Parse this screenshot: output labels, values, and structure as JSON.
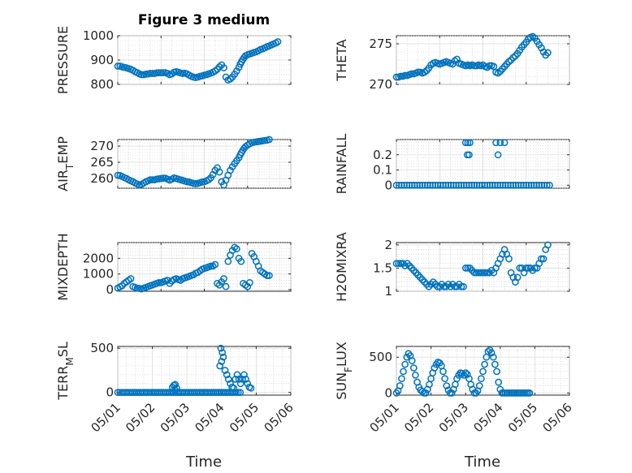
{
  "figure": {
    "title": "Figure 3 medium",
    "xlabel": "Time",
    "x_tick_labels": [
      "05/01",
      "05/02",
      "05/03",
      "05/04",
      "05/05",
      "05/06"
    ],
    "marker_color": "#0072bd"
  },
  "chart_data": [
    {
      "id": "pressure",
      "type": "scatter",
      "title": "Figure 3 medium",
      "ylabel": "PRESSURE",
      "ylim": [
        800,
        1000
      ],
      "yticks": [
        800,
        900,
        1000
      ],
      "xlim": [
        0,
        4
      ],
      "x_tick_labels_visible": false,
      "x": [
        0.0,
        0.05,
        0.1,
        0.15,
        0.2,
        0.25,
        0.3,
        0.35,
        0.4,
        0.45,
        0.5,
        0.55,
        0.6,
        0.65,
        0.7,
        0.75,
        0.8,
        0.85,
        0.9,
        0.95,
        1.0,
        1.05,
        1.1,
        1.15,
        1.2,
        1.25,
        1.3,
        1.35,
        1.4,
        1.45,
        1.5,
        1.55,
        1.6,
        1.65,
        1.7,
        1.75,
        1.8,
        1.85,
        1.9,
        1.95,
        2.0,
        2.05,
        2.1,
        2.15,
        2.2,
        2.25,
        2.3,
        2.35,
        2.4,
        2.45,
        2.5,
        2.55,
        2.6,
        2.65,
        2.7,
        2.75,
        2.8,
        2.83,
        2.86,
        2.89,
        2.92,
        2.95,
        3.0,
        3.05,
        3.1,
        3.15,
        3.2,
        3.25,
        3.3,
        3.35,
        3.4,
        3.45,
        3.5,
        3.55,
        3.6,
        3.65,
        3.7
      ],
      "y": [
        875,
        875,
        872,
        870,
        868,
        865,
        862,
        858,
        852,
        848,
        843,
        840,
        840,
        842,
        843,
        845,
        845,
        845,
        847,
        848,
        848,
        848,
        848,
        845,
        840,
        843,
        850,
        852,
        850,
        847,
        845,
        846,
        843,
        838,
        833,
        830,
        828,
        830,
        833,
        835,
        838,
        840,
        843,
        846,
        850,
        855,
        862,
        872,
        880,
        868,
        830,
        818,
        822,
        830,
        842,
        855,
        870,
        883,
        893,
        902,
        910,
        917,
        922,
        925,
        928,
        931,
        934,
        938,
        943,
        946,
        950,
        955,
        958,
        962,
        966,
        970,
        975
      ]
    },
    {
      "id": "theta",
      "type": "scatter",
      "ylabel": "THETA",
      "ylim": [
        270,
        276
      ],
      "yticks": [
        270,
        275
      ],
      "xlim": [
        0,
        4
      ],
      "x_tick_labels_visible": false,
      "x": [
        0.0,
        0.05,
        0.1,
        0.15,
        0.2,
        0.25,
        0.3,
        0.35,
        0.4,
        0.45,
        0.5,
        0.55,
        0.6,
        0.65,
        0.7,
        0.75,
        0.8,
        0.85,
        0.9,
        0.95,
        1.0,
        1.05,
        1.1,
        1.15,
        1.2,
        1.25,
        1.3,
        1.35,
        1.4,
        1.45,
        1.5,
        1.55,
        1.6,
        1.65,
        1.7,
        1.75,
        1.8,
        1.85,
        1.9,
        1.95,
        2.0,
        2.05,
        2.1,
        2.15,
        2.2,
        2.25,
        2.3,
        2.35,
        2.4,
        2.45,
        2.5,
        2.55,
        2.6,
        2.65,
        2.7,
        2.75,
        2.8,
        2.85,
        2.9,
        2.95,
        3.0,
        3.05,
        3.1,
        3.15,
        3.2,
        3.25,
        3.3,
        3.35,
        3.4,
        3.45,
        3.5
      ],
      "y": [
        270.9,
        270.9,
        271.0,
        271.0,
        271.1,
        271.1,
        271.2,
        271.3,
        271.3,
        271.4,
        271.5,
        271.5,
        271.4,
        271.5,
        271.7,
        272.0,
        272.4,
        272.6,
        272.7,
        272.6,
        272.5,
        272.6,
        272.7,
        272.8,
        272.7,
        272.6,
        272.5,
        272.9,
        273.1,
        272.6,
        272.5,
        272.4,
        272.3,
        272.4,
        272.3,
        272.4,
        272.3,
        272.3,
        272.4,
        272.3,
        272.4,
        272.2,
        272.1,
        272.3,
        272.3,
        272.2,
        271.5,
        271.4,
        271.6,
        271.9,
        272.2,
        272.5,
        272.8,
        273.0,
        273.3,
        273.5,
        273.8,
        274.2,
        274.6,
        274.9,
        275.2,
        275.6,
        275.8,
        275.9,
        275.7,
        275.3,
        274.9,
        274.5,
        274.0,
        273.6,
        273.9
      ]
    },
    {
      "id": "air_temp",
      "type": "scatter",
      "ylabel": "AIR_TEMP",
      "ylim": [
        257,
        272
      ],
      "yticks": [
        260,
        265,
        270
      ],
      "xlim": [
        0,
        4
      ],
      "x_tick_labels_visible": false,
      "x": [
        0.0,
        0.05,
        0.1,
        0.15,
        0.2,
        0.25,
        0.3,
        0.35,
        0.4,
        0.45,
        0.5,
        0.55,
        0.6,
        0.65,
        0.7,
        0.75,
        0.8,
        0.85,
        0.9,
        0.95,
        1.0,
        1.05,
        1.1,
        1.15,
        1.2,
        1.25,
        1.3,
        1.35,
        1.4,
        1.45,
        1.5,
        1.55,
        1.6,
        1.65,
        1.7,
        1.75,
        1.8,
        1.85,
        1.9,
        1.95,
        2.0,
        2.05,
        2.1,
        2.15,
        2.2,
        2.25,
        2.3,
        2.35,
        2.4,
        2.45,
        2.5,
        2.55,
        2.6,
        2.65,
        2.7,
        2.75,
        2.8,
        2.83,
        2.86,
        2.89,
        2.92,
        2.95,
        3.0,
        3.05,
        3.1,
        3.15,
        3.2,
        3.25,
        3.3,
        3.35,
        3.4,
        3.45,
        3.5
      ],
      "y": [
        261.0,
        260.9,
        260.6,
        260.3,
        260.0,
        259.6,
        259.3,
        259.0,
        258.6,
        258.3,
        258.0,
        258.2,
        258.6,
        259.0,
        259.3,
        259.6,
        259.6,
        259.6,
        259.8,
        259.9,
        260.0,
        260.1,
        260.1,
        259.8,
        259.5,
        259.8,
        260.2,
        260.0,
        259.8,
        259.6,
        259.4,
        259.2,
        259.0,
        258.9,
        258.7,
        258.5,
        258.4,
        258.5,
        258.7,
        258.9,
        259.0,
        259.3,
        259.6,
        260.2,
        261.2,
        262.5,
        263.3,
        262.0,
        259.0,
        258.0,
        259.5,
        261.0,
        262.5,
        263.6,
        264.6,
        265.5,
        266.4,
        267.3,
        268.0,
        268.7,
        269.3,
        269.8,
        270.3,
        270.7,
        271.0,
        271.2,
        271.3,
        271.4,
        271.5,
        271.6,
        271.7,
        271.8,
        272.0
      ]
    },
    {
      "id": "rainfall",
      "type": "scatter",
      "ylabel": "RAINFALL",
      "ylim": [
        -0.02,
        0.3
      ],
      "yticks": [
        0,
        0.1,
        0.2
      ],
      "xlim": [
        0,
        4
      ],
      "x_tick_labels_visible": false,
      "x": [
        0.0,
        0.06,
        0.12,
        0.18,
        0.24,
        0.3,
        0.36,
        0.42,
        0.48,
        0.54,
        0.6,
        0.66,
        0.72,
        0.78,
        0.84,
        0.9,
        0.96,
        1.02,
        1.08,
        1.14,
        1.2,
        1.26,
        1.32,
        1.38,
        1.44,
        1.5,
        1.56,
        1.62,
        1.68,
        1.74,
        1.8,
        1.86,
        1.92,
        1.98,
        2.04,
        2.1,
        2.16,
        2.22,
        2.28,
        2.34,
        2.4,
        2.46,
        2.52,
        2.58,
        2.64,
        2.7,
        2.76,
        2.82,
        2.88,
        2.94,
        3.0,
        3.06,
        3.12,
        3.18,
        3.24,
        3.3,
        3.36,
        3.42,
        3.48,
        3.54,
        1.6,
        1.65,
        1.7,
        1.64,
        1.68,
        2.3,
        2.4,
        2.5,
        2.35
      ],
      "y": [
        0,
        0,
        0,
        0,
        0,
        0,
        0,
        0,
        0,
        0,
        0,
        0,
        0,
        0,
        0,
        0,
        0,
        0,
        0,
        0,
        0,
        0,
        0,
        0,
        0,
        0,
        0,
        0,
        0,
        0,
        0,
        0,
        0,
        0,
        0,
        0,
        0,
        0,
        0,
        0,
        0,
        0,
        0,
        0,
        0,
        0,
        0,
        0,
        0,
        0,
        0,
        0,
        0,
        0,
        0,
        0,
        0,
        0,
        0,
        0,
        0.28,
        0.28,
        0.28,
        0.2,
        0.2,
        0.28,
        0.28,
        0.28,
        0.2
      ]
    },
    {
      "id": "mixdepth",
      "type": "scatter",
      "ylabel": "MIXDEPTH",
      "ylim": [
        -100,
        3000
      ],
      "yticks": [
        0,
        1000,
        2000
      ],
      "xlim": [
        0,
        4
      ],
      "x_tick_labels_visible": false,
      "x": [
        0.0,
        0.05,
        0.1,
        0.15,
        0.2,
        0.25,
        0.3,
        0.35,
        0.4,
        0.45,
        0.5,
        0.55,
        0.6,
        0.65,
        0.7,
        0.75,
        0.8,
        0.85,
        0.9,
        0.95,
        1.0,
        1.05,
        1.1,
        1.15,
        1.2,
        1.25,
        1.3,
        1.35,
        1.4,
        1.45,
        1.5,
        1.55,
        1.6,
        1.65,
        1.7,
        1.75,
        1.8,
        1.85,
        1.9,
        1.95,
        2.0,
        2.05,
        2.1,
        2.15,
        2.2,
        2.25,
        2.3,
        2.35,
        2.4,
        2.45,
        2.5,
        2.55,
        2.6,
        2.65,
        2.7,
        2.75,
        2.8,
        2.85,
        2.9,
        2.95,
        3.0,
        3.05,
        3.1,
        3.15,
        3.2,
        3.25,
        3.3,
        3.35,
        3.4,
        3.45,
        3.5
      ],
      "y": [
        100,
        180,
        250,
        400,
        500,
        600,
        700,
        200,
        150,
        100,
        80,
        50,
        100,
        150,
        200,
        250,
        300,
        350,
        400,
        450,
        450,
        500,
        550,
        600,
        400,
        550,
        650,
        700,
        650,
        600,
        700,
        750,
        800,
        850,
        900,
        950,
        1050,
        1100,
        1200,
        1300,
        1350,
        1400,
        1450,
        1500,
        1500,
        1600,
        400,
        300,
        500,
        700,
        200,
        1800,
        2200,
        2500,
        2700,
        2600,
        2000,
        1800,
        400,
        300,
        200,
        450,
        2300,
        2100,
        1800,
        1500,
        1200,
        1100,
        1000,
        900,
        900
      ]
    },
    {
      "id": "h2omixra",
      "type": "scatter",
      "ylabel": "H2OMIXRA",
      "ylim": [
        1.0,
        2.05
      ],
      "yticks": [
        1,
        1.5,
        2
      ],
      "xlim": [
        0,
        4
      ],
      "x_tick_labels_visible": false,
      "x": [
        0.0,
        0.05,
        0.1,
        0.15,
        0.2,
        0.25,
        0.3,
        0.35,
        0.4,
        0.45,
        0.5,
        0.55,
        0.6,
        0.65,
        0.7,
        0.75,
        0.8,
        0.85,
        0.9,
        0.95,
        1.0,
        1.05,
        1.1,
        1.15,
        1.2,
        1.25,
        1.3,
        1.35,
        1.4,
        1.45,
        1.5,
        1.55,
        1.6,
        1.65,
        1.7,
        1.75,
        1.8,
        1.85,
        1.9,
        1.95,
        2.0,
        2.05,
        2.1,
        2.15,
        2.2,
        2.25,
        2.3,
        2.35,
        2.4,
        2.45,
        2.5,
        2.55,
        2.6,
        2.65,
        2.7,
        2.75,
        2.8,
        2.85,
        2.9,
        2.95,
        3.0,
        3.05,
        3.1,
        3.15,
        3.2,
        3.25,
        3.3,
        3.35,
        3.4,
        3.45,
        3.5
      ],
      "y": [
        1.6,
        1.6,
        1.6,
        1.6,
        1.55,
        1.6,
        1.55,
        1.5,
        1.45,
        1.4,
        1.35,
        1.3,
        1.25,
        1.2,
        1.15,
        1.1,
        1.15,
        1.2,
        1.15,
        1.1,
        1.1,
        1.15,
        1.1,
        1.1,
        1.15,
        1.1,
        1.15,
        1.1,
        1.1,
        1.15,
        1.1,
        1.1,
        1.5,
        1.5,
        1.5,
        1.45,
        1.4,
        1.4,
        1.4,
        1.4,
        1.4,
        1.4,
        1.4,
        1.4,
        1.45,
        1.4,
        1.5,
        1.6,
        1.7,
        1.8,
        1.9,
        1.8,
        1.7,
        1.4,
        1.3,
        1.2,
        1.3,
        1.5,
        1.5,
        1.4,
        1.5,
        1.5,
        1.5,
        1.45,
        1.5,
        1.5,
        1.6,
        1.7,
        1.7,
        1.9,
        2.0
      ]
    },
    {
      "id": "terr_msl",
      "type": "scatter",
      "ylabel": "TERR_MSL",
      "ylim": [
        -30,
        520
      ],
      "yticks": [
        0,
        500
      ],
      "xlim": [
        0,
        5
      ],
      "x_tick_labels": [
        "05/01",
        "05/02",
        "05/03",
        "05/04",
        "05/05",
        "05/06"
      ],
      "xlabel": "Time",
      "x": [
        0.0,
        0.06,
        0.12,
        0.18,
        0.24,
        0.3,
        0.36,
        0.42,
        0.48,
        0.54,
        0.6,
        0.66,
        0.72,
        0.78,
        0.84,
        0.9,
        0.96,
        1.02,
        1.08,
        1.14,
        1.2,
        1.26,
        1.32,
        1.38,
        1.44,
        1.5,
        1.56,
        1.62,
        1.68,
        1.74,
        1.8,
        1.86,
        1.92,
        1.98,
        2.04,
        2.1,
        2.16,
        2.22,
        2.28,
        2.34,
        2.4,
        2.46,
        2.52,
        2.58,
        2.64,
        2.7,
        2.76,
        2.82,
        2.88,
        2.94,
        3.0,
        3.06,
        3.12,
        3.18,
        3.24,
        3.3,
        3.36,
        3.42,
        3.48,
        3.54,
        1.58,
        1.62,
        1.66,
        1.7,
        1.65,
        2.95,
        3.0,
        3.05,
        3.1,
        3.15,
        3.2,
        3.25,
        3.3,
        3.35,
        3.4,
        3.45,
        3.5,
        3.55,
        3.6,
        3.65,
        3.7,
        3.75,
        3.8,
        3.85,
        2.98,
        3.02
      ],
      "y": [
        0,
        0,
        0,
        0,
        0,
        0,
        0,
        0,
        0,
        0,
        0,
        0,
        0,
        0,
        0,
        0,
        0,
        0,
        0,
        0,
        0,
        0,
        0,
        0,
        0,
        0,
        0,
        0,
        0,
        0,
        0,
        0,
        0,
        0,
        0,
        0,
        0,
        0,
        0,
        0,
        0,
        0,
        0,
        0,
        0,
        0,
        0,
        0,
        0,
        0,
        0,
        0,
        0,
        0,
        0,
        0,
        0,
        0,
        0,
        0,
        60,
        80,
        90,
        50,
        30,
        300,
        350,
        400,
        250,
        200,
        150,
        100,
        60,
        50,
        150,
        200,
        150,
        100,
        150,
        200,
        150,
        100,
        60,
        50,
        500,
        450
      ]
    },
    {
      "id": "sun_flux",
      "type": "scatter",
      "ylabel": "SUN_FLUX",
      "ylim": [
        -30,
        650
      ],
      "yticks": [
        0,
        500
      ],
      "xlim": [
        0,
        5
      ],
      "x_tick_labels": [
        "05/01",
        "05/02",
        "05/03",
        "05/04",
        "05/05",
        "05/06"
      ],
      "xlabel": "Time",
      "x": [
        0.0,
        0.05,
        0.1,
        0.15,
        0.2,
        0.25,
        0.3,
        0.35,
        0.4,
        0.45,
        0.5,
        0.55,
        0.6,
        0.65,
        0.7,
        0.75,
        0.8,
        0.85,
        0.9,
        0.95,
        1.0,
        1.05,
        1.1,
        1.15,
        1.2,
        1.25,
        1.3,
        1.35,
        1.4,
        1.45,
        1.5,
        1.55,
        1.6,
        1.65,
        1.7,
        1.75,
        1.8,
        1.85,
        1.9,
        1.95,
        2.0,
        2.05,
        2.1,
        2.15,
        2.2,
        2.25,
        2.3,
        2.35,
        2.4,
        2.45,
        2.5,
        2.55,
        2.6,
        2.65,
        2.7,
        2.75,
        2.8,
        2.85,
        2.9,
        2.95,
        3.0,
        3.05,
        3.1,
        3.15,
        3.2,
        3.25,
        3.3,
        3.35,
        3.4,
        3.45,
        3.5,
        3.55,
        3.6,
        3.65,
        3.7,
        3.75,
        3.8,
        3.85
      ],
      "y": [
        0,
        30,
        100,
        200,
        300,
        400,
        500,
        550,
        520,
        450,
        350,
        250,
        150,
        80,
        40,
        20,
        0,
        0,
        50,
        120,
        200,
        280,
        350,
        400,
        430,
        420,
        380,
        300,
        200,
        100,
        40,
        0,
        0,
        50,
        120,
        200,
        250,
        280,
        270,
        250,
        280,
        260,
        200,
        120,
        50,
        0,
        0,
        30,
        100,
        200,
        300,
        400,
        500,
        580,
        600,
        560,
        500,
        400,
        300,
        150,
        50,
        0,
        0,
        0,
        0,
        0,
        0,
        0,
        0,
        0,
        0,
        0,
        0,
        0,
        0,
        0,
        0,
        0
      ]
    }
  ]
}
